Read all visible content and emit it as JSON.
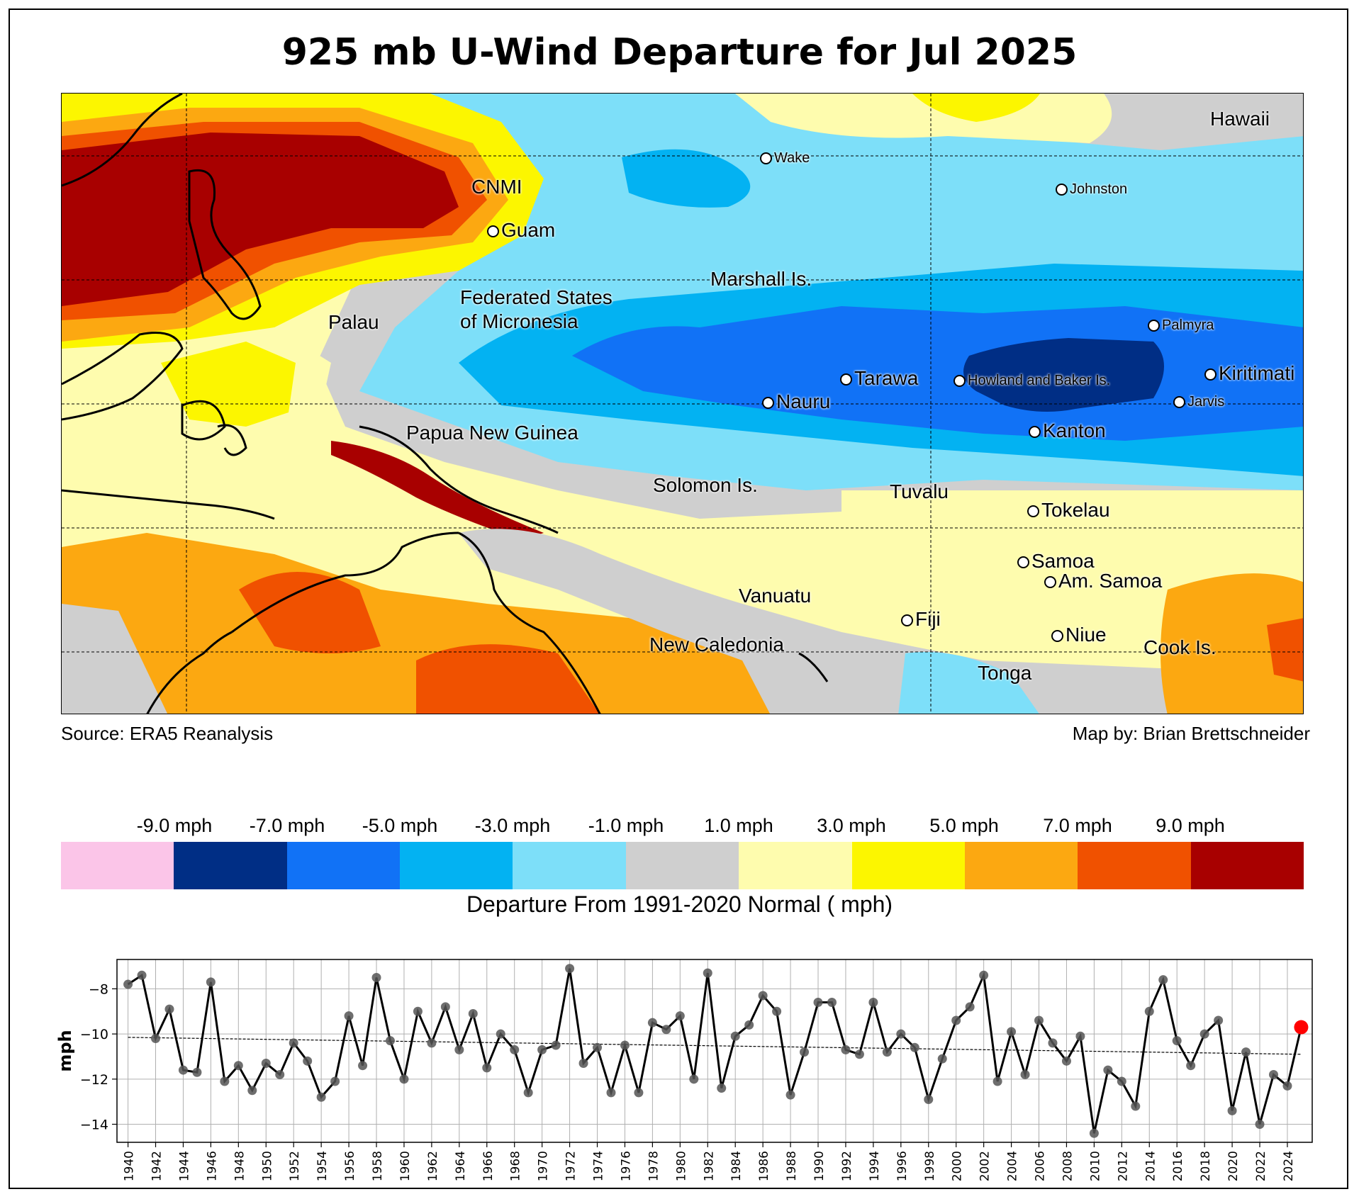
{
  "title": "925 mb U-Wind Departure for Jul 2025",
  "map": {
    "source": "Source: ERA5 Reanalysis",
    "credit": "Map by: Brian Brettschneider",
    "labels": [
      {
        "text": "Hawaii",
        "marker": false
      },
      {
        "text": "Wake",
        "marker": true
      },
      {
        "text": "Johnston",
        "marker": true
      },
      {
        "text": "CNMI",
        "marker": false
      },
      {
        "text": "Guam",
        "marker": true
      },
      {
        "text": "Marshall Is.",
        "marker": false
      },
      {
        "text": "Federated States",
        "marker": false
      },
      {
        "text": "of Micronesia",
        "marker": false
      },
      {
        "text": "Palau",
        "marker": false
      },
      {
        "text": "Palmyra",
        "marker": true
      },
      {
        "text": "Tarawa",
        "marker": true
      },
      {
        "text": "Howland and Baker Is.",
        "marker": true
      },
      {
        "text": "Kiritimati",
        "marker": true
      },
      {
        "text": "Nauru",
        "marker": true
      },
      {
        "text": "Jarvis",
        "marker": true
      },
      {
        "text": "Kanton",
        "marker": true
      },
      {
        "text": "Papua New Guinea",
        "marker": false
      },
      {
        "text": "Solomon Is.",
        "marker": false
      },
      {
        "text": "Tuvalu",
        "marker": false
      },
      {
        "text": "Tokelau",
        "marker": true
      },
      {
        "text": "Samoa",
        "marker": true
      },
      {
        "text": "Am. Samoa",
        "marker": true
      },
      {
        "text": "Vanuatu",
        "marker": false
      },
      {
        "text": "Fiji",
        "marker": true
      },
      {
        "text": "Niue",
        "marker": true
      },
      {
        "text": "New Caledonia",
        "marker": false
      },
      {
        "text": "Cook Is.",
        "marker": false
      },
      {
        "text": "Tonga",
        "marker": false
      }
    ]
  },
  "legend": {
    "title": "Departure From 1991-2020 Normal ( mph)",
    "tick_labels": [
      "-9.0 mph",
      "-7.0 mph",
      "-5.0 mph",
      "-3.0 mph",
      "-1.0 mph",
      "1.0 mph",
      "3.0 mph",
      "5.0 mph",
      "7.0 mph",
      "9.0 mph"
    ],
    "colors": [
      "#fbc5e8",
      "#002e85",
      "#1172f6",
      "#03b2f2",
      "#7ddff9",
      "#cfcfcf",
      "#fefcae",
      "#fcf600",
      "#fca811",
      "#f05100",
      "#a80000"
    ]
  },
  "chart_data": {
    "type": "line",
    "ylabel": "mph",
    "xlabel": "",
    "ylim": [
      -14.8,
      -6.7
    ],
    "yticks": [
      -8,
      -10,
      -12,
      -14
    ],
    "xticks": [
      1940,
      1942,
      1944,
      1946,
      1948,
      1950,
      1952,
      1954,
      1956,
      1958,
      1960,
      1962,
      1964,
      1966,
      1968,
      1970,
      1972,
      1974,
      1976,
      1978,
      1980,
      1982,
      1984,
      1986,
      1988,
      1990,
      1992,
      1994,
      1996,
      1998,
      2000,
      2002,
      2004,
      2006,
      2008,
      2010,
      2012,
      2014,
      2016,
      2018,
      2020,
      2022,
      2024
    ],
    "x": [
      1940,
      1941,
      1942,
      1943,
      1944,
      1945,
      1946,
      1947,
      1948,
      1949,
      1950,
      1951,
      1952,
      1953,
      1954,
      1955,
      1956,
      1957,
      1958,
      1959,
      1960,
      1961,
      1962,
      1963,
      1964,
      1965,
      1966,
      1967,
      1968,
      1969,
      1970,
      1971,
      1972,
      1973,
      1974,
      1975,
      1976,
      1977,
      1978,
      1979,
      1980,
      1981,
      1982,
      1983,
      1984,
      1985,
      1986,
      1987,
      1988,
      1989,
      1990,
      1991,
      1992,
      1993,
      1994,
      1995,
      1996,
      1997,
      1998,
      1999,
      2000,
      2001,
      2002,
      2003,
      2004,
      2005,
      2006,
      2007,
      2008,
      2009,
      2010,
      2011,
      2012,
      2013,
      2014,
      2015,
      2016,
      2017,
      2018,
      2019,
      2020,
      2021,
      2022,
      2023,
      2024,
      2025
    ],
    "values": [
      -7.8,
      -7.4,
      -10.2,
      -8.9,
      -11.6,
      -11.7,
      -7.7,
      -12.1,
      -11.4,
      -12.5,
      -11.3,
      -11.8,
      -10.4,
      -11.2,
      -12.8,
      -12.1,
      -9.2,
      -11.4,
      -7.5,
      -10.3,
      -12.0,
      -9.0,
      -10.4,
      -8.8,
      -10.7,
      -9.1,
      -11.5,
      -10.0,
      -10.7,
      -12.6,
      -10.7,
      -10.5,
      -7.1,
      -11.3,
      -10.6,
      -12.6,
      -10.5,
      -12.6,
      -9.5,
      -9.8,
      -9.2,
      -12.0,
      -7.3,
      -12.4,
      -10.1,
      -9.6,
      -8.3,
      -9.0,
      -12.7,
      -10.8,
      -8.6,
      -8.6,
      -10.7,
      -10.9,
      -8.6,
      -10.8,
      -10.0,
      -10.6,
      -12.9,
      -11.1,
      -9.4,
      -8.8,
      -7.4,
      -12.1,
      -9.9,
      -11.8,
      -9.4,
      -10.4,
      -11.2,
      -10.1,
      -14.4,
      -11.6,
      -12.1,
      -13.2,
      -9.0,
      -7.6,
      -10.3,
      -11.4,
      -10.0,
      -9.4,
      -13.4,
      -10.8,
      -14.0,
      -11.8,
      -12.3,
      -9.7
    ],
    "trend": {
      "start": -10.15,
      "end": -10.9
    },
    "highlight_year": 2025
  }
}
